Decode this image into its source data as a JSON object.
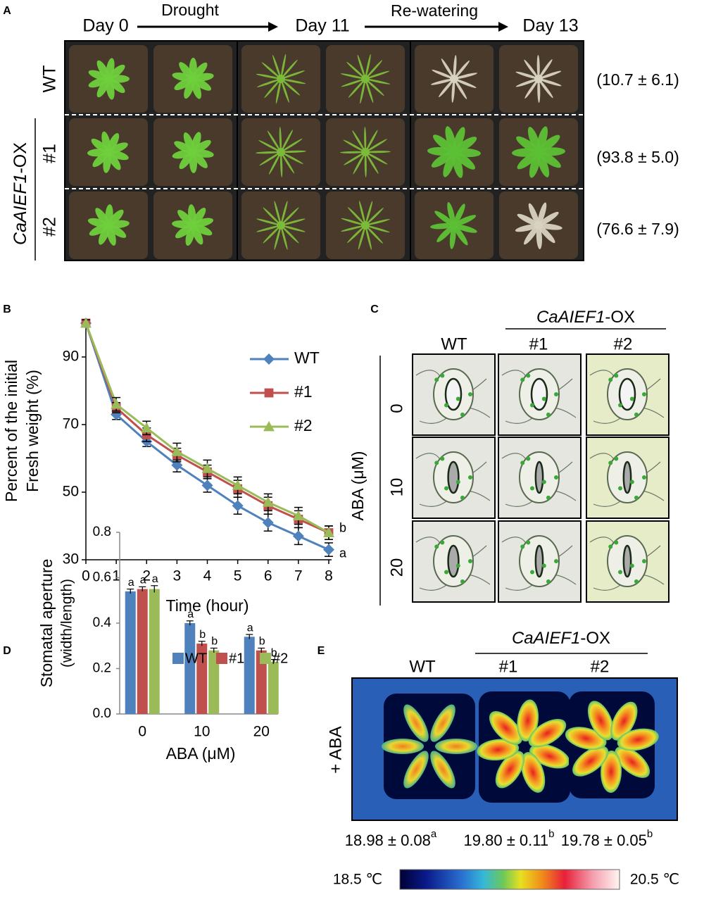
{
  "panels": [
    "A",
    "B",
    "C",
    "D",
    "E"
  ],
  "panel_a": {
    "headers": [
      "Day 0",
      "Day 11",
      "Day 13"
    ],
    "arrows": [
      "Drought",
      "Re-watering"
    ],
    "rows": [
      "WT",
      "#1",
      "#2"
    ],
    "group": {
      "gene": "CaAIEF1",
      "suffix": "-OX"
    },
    "survival": [
      "(10.7 ± 6.1)",
      "(93.8 ± 5.0)",
      "(76.6 ± 7.9)"
    ]
  },
  "chart_data": [
    {
      "type": "line",
      "y_label": [
        "Percent of the initial",
        "Fresh  weight (%)"
      ],
      "x_label": "Time (hour)",
      "x": [
        0,
        1,
        2,
        3,
        4,
        5,
        6,
        7,
        8
      ],
      "xlim": [
        0,
        8
      ],
      "xticks": [
        0,
        1,
        2,
        3,
        4,
        5,
        6,
        7,
        8
      ],
      "ylim": [
        30,
        100
      ],
      "yticks": [
        30,
        50,
        70,
        90
      ],
      "legend": "upper right",
      "series": [
        {
          "name": "WT",
          "color": "#4f81bd",
          "marker": "diamond",
          "values": [
            100,
            73,
            65,
            58,
            52,
            46,
            41,
            37,
            33
          ],
          "errors": [
            1,
            1.5,
            1.5,
            2,
            2,
            2.5,
            2.5,
            2.5,
            2
          ],
          "letter": "a"
        },
        {
          "name": "#1",
          "color": "#c0504d",
          "marker": "square",
          "values": [
            100,
            75,
            67,
            61,
            56,
            51,
            46,
            42,
            38
          ],
          "errors": [
            1,
            1.5,
            2,
            2,
            2,
            2.5,
            2.5,
            2.5,
            2
          ],
          "letter": "b"
        },
        {
          "name": "#2",
          "color": "#9bbb59",
          "marker": "triangle",
          "values": [
            100,
            76,
            69,
            62,
            57,
            52,
            47,
            43,
            38
          ],
          "errors": [
            1,
            2,
            2,
            2.5,
            2.5,
            2.5,
            2.5,
            2.5,
            2
          ]
        }
      ]
    },
    {
      "type": "bar",
      "y_label": [
        "Stomatal aperture",
        "(width/length)"
      ],
      "x_label": "ABA (μM)",
      "categories": [
        "0",
        "10",
        "20"
      ],
      "ylim": [
        0,
        0.8
      ],
      "yticks": [
        {
          "value": 0,
          "label": "0.0"
        },
        0.2,
        0.4,
        0.6,
        0.8
      ],
      "legend": "top",
      "series": [
        {
          "name": "WT",
          "color": "#4f81bd",
          "values": [
            0.54,
            0.4,
            0.34
          ],
          "errors": [
            0.01,
            0.01,
            0.01
          ],
          "letters": [
            "a",
            "a",
            "a"
          ]
        },
        {
          "name": "#1",
          "color": "#c0504d",
          "values": [
            0.55,
            0.31,
            0.28
          ],
          "errors": [
            0.01,
            0.01,
            0.01
          ],
          "letters": [
            "a",
            "b",
            "b"
          ]
        },
        {
          "name": "#2",
          "color": "#9bbb59",
          "values": [
            0.55,
            0.28,
            0.23
          ],
          "errors": [
            0.015,
            0.01,
            0.01
          ],
          "letters": [
            "a",
            "b",
            "b"
          ]
        }
      ]
    }
  ],
  "panel_c": {
    "group": {
      "gene": "CaAIEF1",
      "suffix": "-OX"
    },
    "columns": [
      "WT",
      "#1",
      "#2"
    ],
    "rows": [
      "0",
      "10",
      "20"
    ],
    "axis_label": "ABA (μM)"
  },
  "panel_e": {
    "group": {
      "gene": "CaAIEF1",
      "suffix": "-OX"
    },
    "columns": [
      "WT",
      "#1",
      "#2"
    ],
    "treatment": "+ ABA",
    "temperatures": [
      {
        "text": "18.98 ± 0.08",
        "letter": "a"
      },
      {
        "text": "19.80 ± 0.11",
        "letter": "b"
      },
      {
        "text": "19.78 ± 0.05",
        "letter": "b"
      }
    ],
    "scale": [
      "18.5 ℃",
      "20.5 ℃"
    ]
  }
}
